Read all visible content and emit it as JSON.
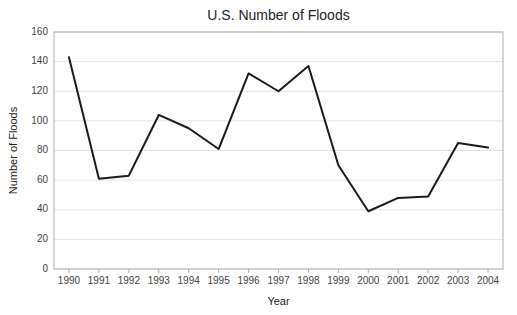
{
  "chart_data": {
    "type": "line",
    "title": "U.S. Number of Floods",
    "x_label": "Year",
    "y_label": "Number of Floods",
    "x": [
      1990,
      1991,
      1992,
      1993,
      1994,
      1995,
      1996,
      1997,
      1998,
      1999,
      2000,
      2001,
      2002,
      2003,
      2004
    ],
    "values": [
      143,
      61,
      63,
      104,
      95,
      81,
      132,
      120,
      137,
      70,
      39,
      48,
      49,
      85,
      82
    ],
    "color": "#1a1a1a",
    "xlim": [
      1989.5,
      2004.5
    ],
    "xticks": [
      1990,
      1991,
      1992,
      1993,
      1994,
      1995,
      1996,
      1997,
      1998,
      1999,
      2000,
      2001,
      2002,
      2003,
      2004
    ],
    "ylim": [
      0,
      160
    ],
    "yticks": [
      0,
      20,
      40,
      60,
      80,
      100,
      120,
      140,
      160
    ],
    "grid": true
  }
}
